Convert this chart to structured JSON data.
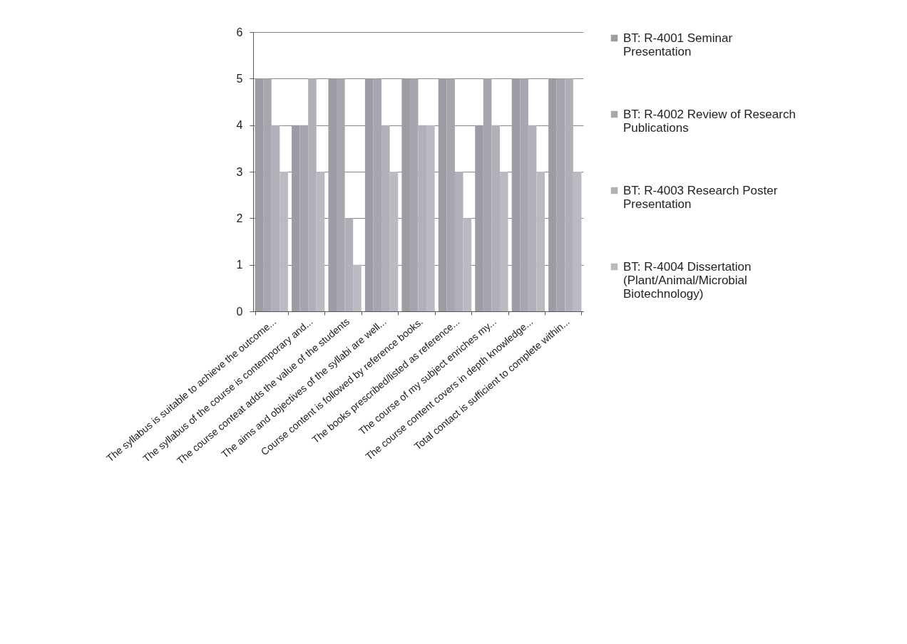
{
  "chart_data": {
    "type": "bar",
    "categories": [
      "The syllabus is suitable to achieve the outcome...",
      "The syllabus of the course is contemporary and...",
      "The course conteat adds the value of the students",
      "The aims and objectives of the syllabi are well...",
      "Course content is followed by reference books.",
      "The books prescribed/listed as reference...",
      "The course of my subject enriches my...",
      "The course content covers in depth knowledge...",
      "Total contact is sufficient to complete within..."
    ],
    "series": [
      {
        "name": "BT: R-4001 Seminar Presentation",
        "color": "#9c9ca4",
        "values": [
          5,
          4,
          5,
          5,
          5,
          5,
          4,
          5,
          5
        ]
      },
      {
        "name": "BT: R-4002 Review of Research Publications",
        "color": "#a6a6ae",
        "values": [
          5,
          4,
          5,
          5,
          5,
          5,
          5,
          5,
          5
        ]
      },
      {
        "name": "BT: R-4003 Research Poster Presentation",
        "color": "#b0b0b8",
        "values": [
          4,
          5,
          2,
          4,
          4,
          3,
          4,
          4,
          5
        ]
      },
      {
        "name": "BT: R-4004 Dissertation (Plant/Animal/Microbial Biotechnology)",
        "color": "#babac2",
        "values": [
          3,
          3,
          1,
          3,
          4,
          2,
          3,
          3,
          3
        ]
      }
    ],
    "ylim": [
      0,
      6
    ],
    "yticks": [
      0,
      1,
      2,
      3,
      4,
      5,
      6
    ],
    "grid": "y",
    "legend": "right"
  }
}
